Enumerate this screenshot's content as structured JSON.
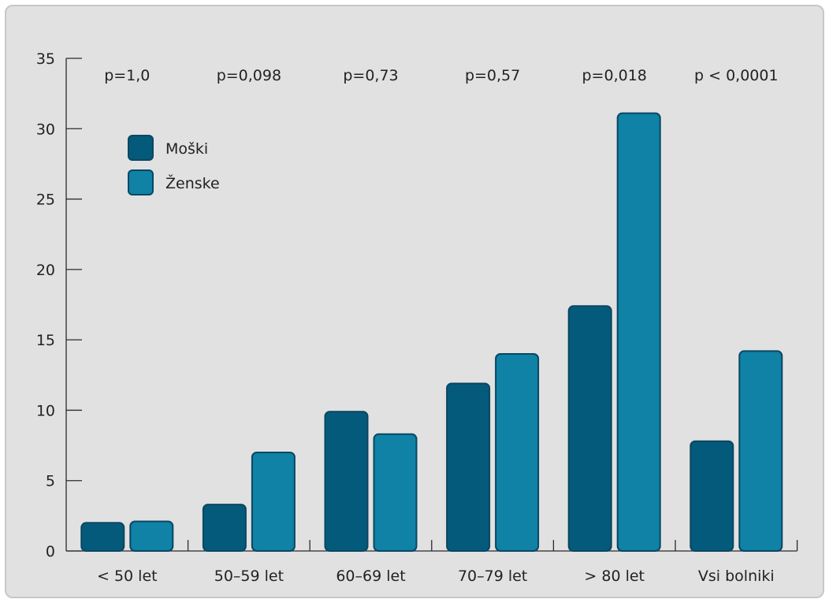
{
  "chart_data": {
    "type": "bar",
    "title": "",
    "xlabel": "",
    "ylabel": "",
    "ylim": [
      0,
      35
    ],
    "yticks": [
      0,
      5,
      10,
      15,
      20,
      25,
      30,
      35
    ],
    "categories": [
      "< 50 let",
      "50–59 let",
      "60–69 let",
      "70–79 let",
      "> 80 let",
      "Vsi bolniki"
    ],
    "p_values": [
      "p=1,0",
      "p=0,098",
      "p=0,73",
      "p=0,57",
      "p=0,018",
      "p < 0,0001"
    ],
    "series": [
      {
        "name": "Moški",
        "color": "#045a7a",
        "values": [
          2.0,
          3.3,
          9.9,
          11.9,
          17.4,
          7.8
        ]
      },
      {
        "name": "Ženske",
        "color": "#0f82a6",
        "values": [
          2.1,
          7.0,
          8.3,
          14.0,
          31.1,
          14.2
        ]
      }
    ],
    "legend_position": "top-left",
    "grid": false
  }
}
